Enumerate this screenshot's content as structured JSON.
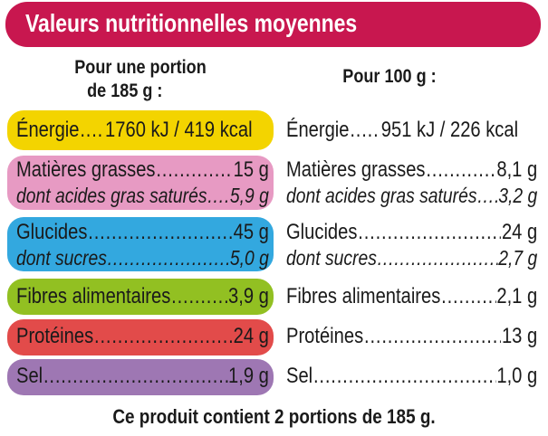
{
  "title": "Valeurs nutritionnelles moyennes",
  "col_portion": [
    "Pour une portion",
    "de 185 g :"
  ],
  "col_100g": "Pour 100 g :",
  "colors": {
    "header": "#c8174f",
    "energie": "#f3d400",
    "graisses": "#e79ac3",
    "glucides": "#33a8df",
    "fibres": "#92c022",
    "proteines": "#e24b4a",
    "sel": "#9e77b3"
  },
  "rows": {
    "energie": {
      "label": "Énergie",
      "portion": "1760 kJ / 419 kcal",
      "per100": "951 kJ / 226 kcal"
    },
    "graisses": {
      "label": "Matières grasses",
      "portion": "15 g",
      "per100": "8,1 g"
    },
    "satures": {
      "label": "dont acides gras saturés",
      "portion": "5,9 g",
      "per100": "3,2 g"
    },
    "glucides": {
      "label": "Glucides",
      "portion": "45 g",
      "per100": "24 g"
    },
    "sucres": {
      "label": "dont sucres",
      "portion": "5,0 g",
      "per100": "2,7 g"
    },
    "fibres": {
      "label": "Fibres alimentaires",
      "portion": "3,9 g",
      "per100": "2,1 g"
    },
    "proteines": {
      "label": "Protéines",
      "portion": "24 g",
      "per100": "13 g"
    },
    "sel": {
      "label": "Sel",
      "portion": "1,9 g",
      "per100": "1,0 g"
    }
  },
  "footer": "Ce produit contient 2 portions de 185 g."
}
